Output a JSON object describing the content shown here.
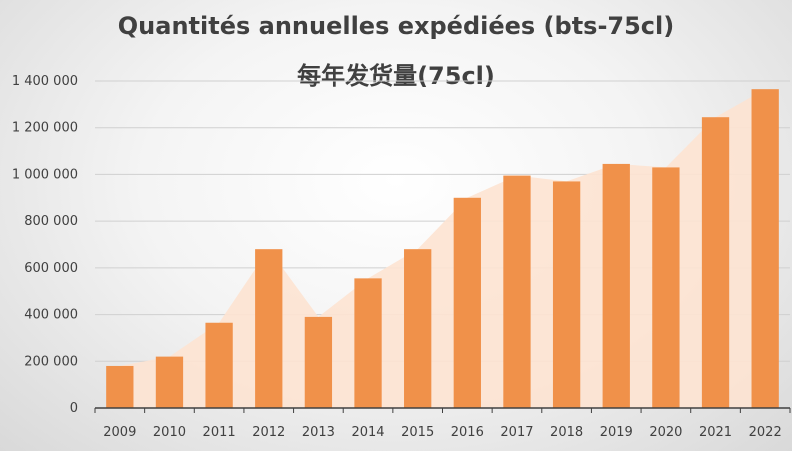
{
  "chart_data": {
    "type": "bar",
    "title": "Quantités annuelles expédiées (bts-75cl)",
    "subtitle": "每年发货量(75cl)",
    "xlabel": "",
    "ylabel": "",
    "categories": [
      "2009",
      "2010",
      "2011",
      "2012",
      "2013",
      "2014",
      "2015",
      "2016",
      "2017",
      "2018",
      "2019",
      "2020",
      "2021",
      "2022"
    ],
    "values": [
      180000,
      220000,
      365000,
      680000,
      390000,
      555000,
      680000,
      900000,
      995000,
      970000,
      1045000,
      1030000,
      1245000,
      1365000
    ],
    "ylim": [
      0,
      1400000
    ],
    "yticks": [
      0,
      200000,
      400000,
      600000,
      800000,
      1000000,
      1200000,
      1400000
    ],
    "ytick_labels": [
      "0",
      "200 000",
      "400 000",
      "600 000",
      "800 000",
      "1 000 000",
      "1 200 000",
      "1 400 000"
    ],
    "grid": true,
    "legend": "none",
    "colors": {
      "bar": "#f0914a",
      "area": "#fde3d2",
      "grid": "#d0d0d0",
      "axis": "#404040"
    }
  }
}
